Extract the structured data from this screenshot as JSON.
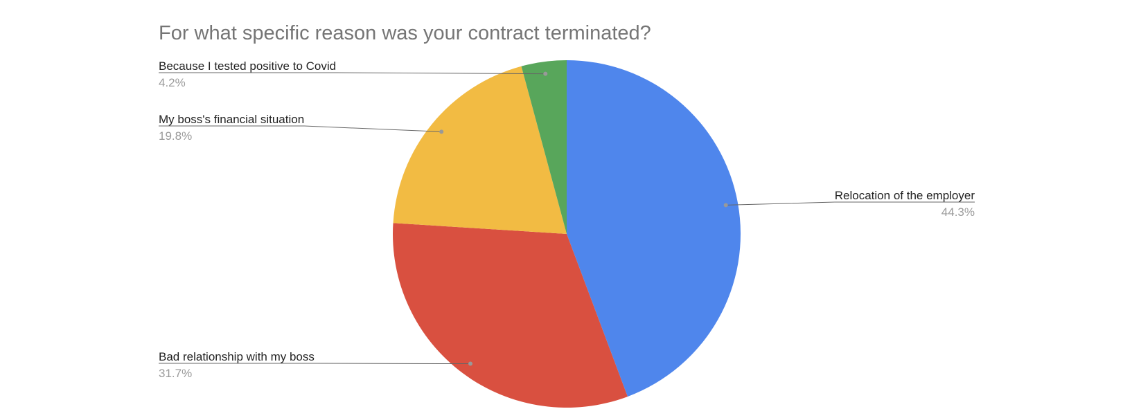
{
  "chart_data": {
    "type": "pie",
    "title": "For what specific reason was your contract terminated?",
    "categories": [
      "Relocation of the employer",
      "Bad relationship with my boss",
      "My boss's financial situation",
      "Because I tested positive to Covid"
    ],
    "values": [
      44.3,
      31.7,
      19.8,
      4.2
    ],
    "value_labels": [
      "44.3%",
      "31.7%",
      "19.8%",
      "4.2%"
    ],
    "colors": [
      "#4f86ec",
      "#d95040",
      "#f2bb43",
      "#58a65b"
    ]
  }
}
